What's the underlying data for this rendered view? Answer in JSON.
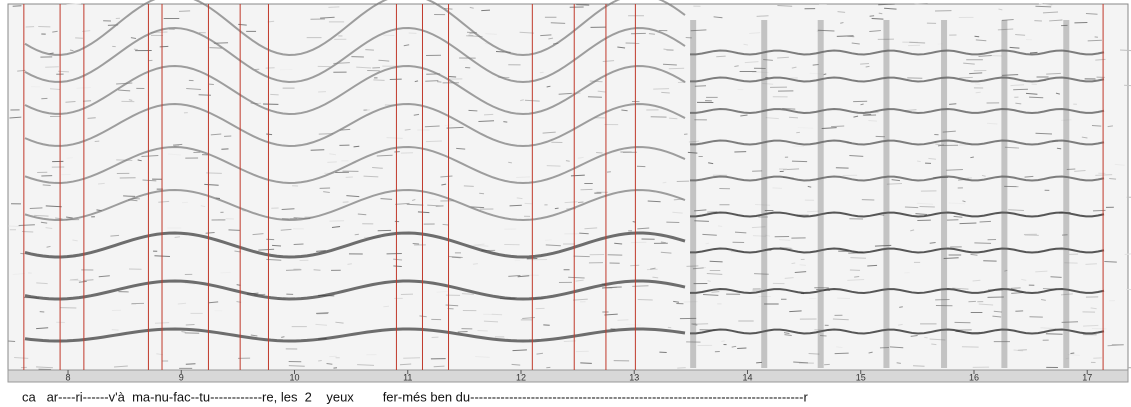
{
  "chart_data": {
    "type": "spectrogram",
    "xlim": [
      7.47,
      17.36
    ],
    "xticks": [
      8,
      9,
      10,
      11,
      12,
      13,
      14,
      15,
      16,
      17
    ],
    "boundaries": [
      7.61,
      7.93,
      8.14,
      8.71,
      8.83,
      9.24,
      9.52,
      9.77,
      10.9,
      11.13,
      11.36,
      12.1,
      12.47,
      12.75,
      13.01,
      17.14
    ],
    "boundary_color": "#c0392b",
    "lyrics": "ca   ar----ri------v'à  ma-nu-fac--tu------------re, les  2    yeux        fer-més ben du-----------------------------------------------------------------------------r"
  }
}
